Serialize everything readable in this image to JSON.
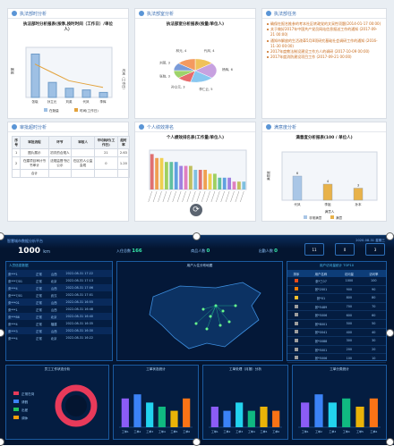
{
  "cards": {
    "ban_duty": {
      "title": "执法部时分析",
      "chart_title": "执法部时分析报表(按季,按时时间（工作日）/单位人）",
      "legend": [
        "在勤量",
        "时间(工作日)"
      ],
      "cats": [
        "张晓",
        "孙立元",
        "刘英",
        "代凤",
        "李辉"
      ],
      "bars": [
        520,
        180,
        110,
        90,
        60
      ],
      "line": [
        20,
        15,
        10,
        8,
        6
      ],
      "ylabel_l": "数量",
      "ylabel_r": "时间（工作日）"
    },
    "ban_dept": {
      "title": "执法部室分析",
      "chart_title": "执法部室分析报表(按量/单位人)",
      "slices": [
        {
          "label": "代凤, 4",
          "v": 4,
          "c": "#f0c25a"
        },
        {
          "label": "杨辉, 6",
          "v": 6,
          "c": "#c7a1e0"
        },
        {
          "label": "李仁云, 5",
          "v": 5,
          "c": "#88c7f0"
        },
        {
          "label": "孙立元, 3",
          "v": 3,
          "c": "#e86b6b"
        },
        {
          "label": "张晓, 3",
          "v": 3,
          "c": "#9ed36a"
        },
        {
          "label": "刘英, 3",
          "v": 3,
          "c": "#7a9bd8"
        },
        {
          "label": "林元, 4",
          "v": 4,
          "c": "#f49a5f"
        }
      ]
    },
    "ban_task": {
      "title": "执法部任务",
      "items": [
        "确保在报名推参的考本社区转政党的文采性项题(2014-01-17 00:00)",
        "关于做好2017年中国共产党员网站信息报送工作的通知 (2017-09-21 00:00)",
        "通知市解放的生活改革5月8项研究基础社会调研工作的通知 (2016-11-30 00:00)",
        "2017年度教法制设建设工作方人的调研 (2017-10-09 00:00)",
        "2017年度消防建设项目工作 (2017-09-21 00:00)"
      ]
    },
    "ban_table": {
      "title": "审批超时分析",
      "headers": [
        "序号",
        "审批流程",
        "环节",
        "审核人",
        "平均耗时(工作日)",
        "超时率"
      ],
      "rows": [
        [
          "1",
          "图片展示",
          "初次的合规人",
          "",
          "21",
          "2.63"
        ],
        [
          "2",
          "在建项目审计书书审计",
          "法规监督书记公示",
          "在区的人公监会现",
          "0",
          "1.20"
        ],
        [
          "",
          "合计",
          "",
          "",
          "",
          ""
        ]
      ]
    },
    "ban_person": {
      "title": "个人绩效排名",
      "chart_title": "个人绩效排名表(工作量/单位人)",
      "values": [
        9,
        8,
        8,
        7,
        7,
        7,
        6,
        6,
        6,
        5,
        5,
        5,
        4,
        4,
        3,
        3,
        3,
        2,
        2,
        2
      ],
      "colors": [
        "#e07070",
        "#f0a050",
        "#f0d050",
        "#a0d060",
        "#60c0a0",
        "#60a0e0",
        "#a080e0",
        "#e080c0",
        "#c0c060",
        "#80c0e0"
      ],
      "ymax": 10
    },
    "ban_satisfy": {
      "title": "满意度分析",
      "chart_title": "满意度分析报表(100 / 单位人)",
      "cats": [
        "代凤",
        "李姐",
        "孙本"
      ],
      "series": [
        {
          "name": "非常满意",
          "values": [
            6,
            0,
            0
          ],
          "color": "#a9c6e6"
        },
        {
          "name": "满意",
          "values": [
            0,
            4,
            3
          ],
          "color": "#e8b24a"
        }
      ],
      "labels": [
        "6",
        "4",
        "3"
      ],
      "ymax": 12,
      "xlabel": "满意人",
      "ylabel": "满意度"
    }
  },
  "dash": {
    "title": "智慧城市数据分析平台",
    "subtitle": "2020-08-31 星期三",
    "stat1_val": "1000",
    "stat1_unit": "km",
    "counters": [
      {
        "label": "入住总数",
        "val": "166"
      },
      {
        "label": "商品人数",
        "val": "0"
      },
      {
        "label": "出勤人数",
        "val": "0"
      }
    ],
    "right_icons": [
      "11",
      "0",
      "3"
    ],
    "list_title": "人员信息数据",
    "list_rows": [
      [
        "张***1",
        "正常",
        "山西",
        "2022-08-31 17:22"
      ],
      [
        "张***7/01",
        "正常",
        "北京",
        "2022-08-31 17:13"
      ],
      [
        "张***4",
        "正常",
        "山西",
        "2022-08-31 17:06"
      ],
      [
        "张***7/01",
        "正常",
        "武汉",
        "2022-08-31 17:01"
      ],
      [
        "张***01",
        "正常",
        "山西",
        "2022-08-31 16:55"
      ],
      [
        "张***1",
        "正常",
        "山西",
        "2022-08-31 16:48"
      ],
      [
        "张***86",
        "正常",
        "北京",
        "2022-08-31 16:40"
      ],
      [
        "张***4",
        "正常",
        "福建",
        "2022-08-31 16:35"
      ],
      [
        "张***3",
        "正常",
        "山西",
        "2022-08-31 16:30"
      ],
      [
        "张***4",
        "正常",
        "北京",
        "2022-08-31 16:22"
      ]
    ],
    "map_title": "用户入住分布地图",
    "rank_title": "用户访问量统计 TOP10",
    "rank_headers": [
      "排序",
      "用户名称",
      "访问量",
      "访问率"
    ],
    "rank_rows": [
      [
        "#e64a19",
        "张*三07",
        "1000",
        "100"
      ],
      [
        "#f57c00",
        "张*2001",
        "900",
        "90"
      ],
      [
        "#fbc02d",
        "张*01",
        "800",
        "80"
      ],
      [
        "#9e9e9e",
        "张*5489",
        "700",
        "70"
      ],
      [
        "#9e9e9e",
        "张*5006",
        "600",
        "60"
      ],
      [
        "#9e9e9e",
        "张*8001",
        "500",
        "50"
      ],
      [
        "#9e9e9e",
        "张*0041",
        "400",
        "40"
      ],
      [
        "#9e9e9e",
        "张*0088",
        "300",
        "30"
      ],
      [
        "#9e9e9e",
        "张*5001",
        "200",
        "20"
      ],
      [
        "#9e9e9e",
        "张*5006",
        "100",
        "10"
      ]
    ],
    "donut_title": "员工工作状态分析",
    "donut_legend": [
      "正常在岗",
      "请假",
      "出差",
      "调休"
    ],
    "donut_colors": [
      "#e83a5a",
      "#3b82f6",
      "#22c55e",
      "#f59e0b"
    ],
    "bar_panels": [
      {
        "title": "工单状态统计",
        "values": [
          7,
          8,
          6,
          5,
          4,
          7
        ]
      },
      {
        "title": "工单处理（月报）分析",
        "values": [
          5,
          4,
          6,
          4,
          5,
          4
        ]
      },
      {
        "title": "工单分类统计",
        "values": [
          6,
          8,
          6,
          7,
          5,
          7
        ]
      }
    ],
    "bar_cats": [
      "工单1",
      "工单2",
      "工单3",
      "工单4",
      "工单5",
      "工单6"
    ],
    "bar_colors": [
      "#8b5cf6",
      "#3b82f6",
      "#22d3ee",
      "#10b981",
      "#eab308",
      "#f97316"
    ]
  }
}
